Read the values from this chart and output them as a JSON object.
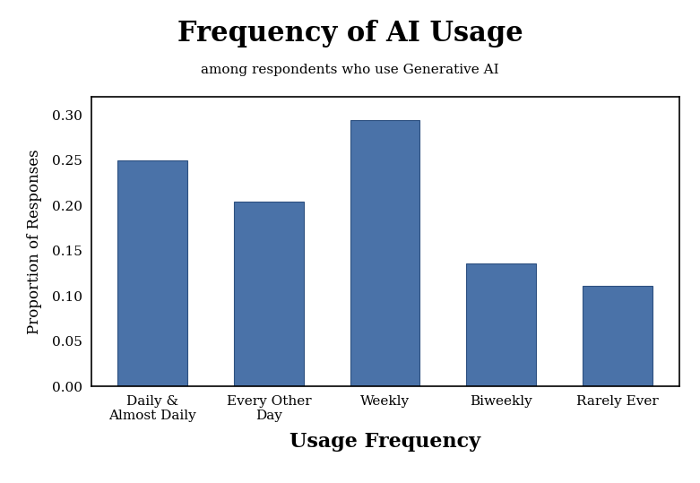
{
  "title": "Frequency of AI Usage",
  "subtitle": "among respondents who use Generative AI",
  "xlabel": "Usage Frequency",
  "ylabel": "Proportion of Responses",
  "categories": [
    "Daily &\nAlmost Daily",
    "Every Other\nDay",
    "Weekly",
    "Biweekly",
    "Rarely Ever"
  ],
  "values": [
    0.25,
    0.204,
    0.294,
    0.136,
    0.111
  ],
  "bar_color": "#4a72a8",
  "bar_edgecolor": "#2d5080",
  "ylim": [
    0,
    0.32
  ],
  "yticks": [
    0.0,
    0.05,
    0.1,
    0.15,
    0.2,
    0.25,
    0.3
  ],
  "title_fontsize": 22,
  "subtitle_fontsize": 11,
  "xlabel_fontsize": 16,
  "ylabel_fontsize": 12,
  "tick_labelsize": 11,
  "background_color": "#ffffff"
}
